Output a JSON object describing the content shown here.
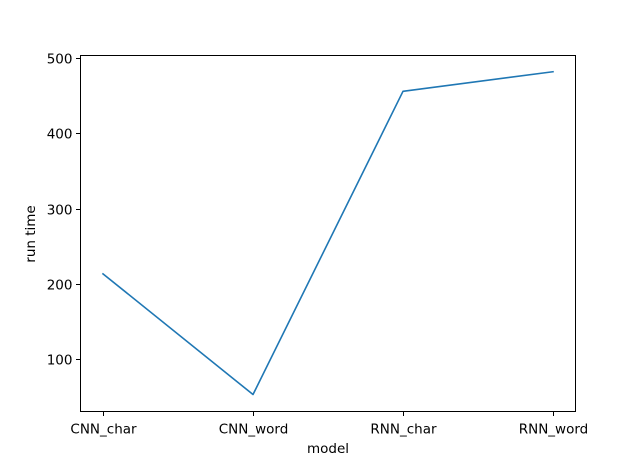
{
  "chart_data": {
    "type": "line",
    "title": "",
    "xlabel": "model",
    "ylabel": "run time",
    "categories": [
      "CNN_char",
      "CNN_word",
      "RNN_char",
      "RNN_word"
    ],
    "series": [
      {
        "values": [
          213.5,
          53.5,
          455.5,
          481.5
        ]
      }
    ],
    "yticks": [
      100,
      200,
      300,
      400,
      500
    ],
    "ylim": [
      31,
      503
    ],
    "grid": false,
    "legend": "none",
    "colors": {
      "series": "#1f77b4",
      "axes": "#000000"
    }
  }
}
